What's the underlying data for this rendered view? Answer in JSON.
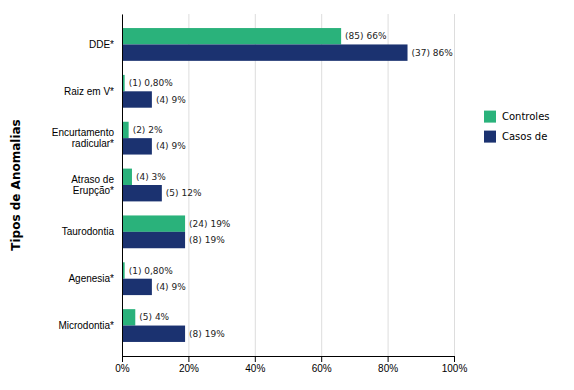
{
  "chart_data": {
    "type": "bar",
    "orientation": "horizontal",
    "ylabel": "Tipos de Anomalias",
    "categories": [
      "Microdontia*",
      "Agenesia*",
      "Taurodontia",
      "Atraso de\nErupção*",
      "Encurtamento\nradicular*",
      "Raiz em V*",
      "DDE*"
    ],
    "series": [
      {
        "name": "Controles",
        "color": "#2ab27b",
        "values": [
          4,
          0.8,
          19,
          3,
          2,
          0.8,
          66
        ],
        "value_labels": [
          "(5) 4%",
          "(1) 0,80%",
          "(24) 19%",
          "(4) 3%",
          "(2) 2%",
          "(1) 0,80%",
          "(85) 66%"
        ]
      },
      {
        "name": "Casos de",
        "color": "#1b3270",
        "values": [
          19,
          9,
          19,
          12,
          9,
          9,
          86
        ],
        "value_labels": [
          "(8) 19%",
          "(4) 9%",
          "(8) 19%",
          "(5) 12%",
          "(4) 9%",
          "(4) 9%",
          "(37) 86%"
        ]
      }
    ],
    "xlim": [
      0,
      100
    ],
    "xticks": [
      {
        "value": 0,
        "label": "0%"
      },
      {
        "value": 20,
        "label": "20%"
      },
      {
        "value": 40,
        "label": "40%"
      },
      {
        "value": 60,
        "label": "60%"
      },
      {
        "value": 80,
        "label": "80%"
      },
      {
        "value": 100,
        "label": "100%"
      }
    ],
    "grid": true,
    "legend": "right",
    "data_labels": true
  }
}
